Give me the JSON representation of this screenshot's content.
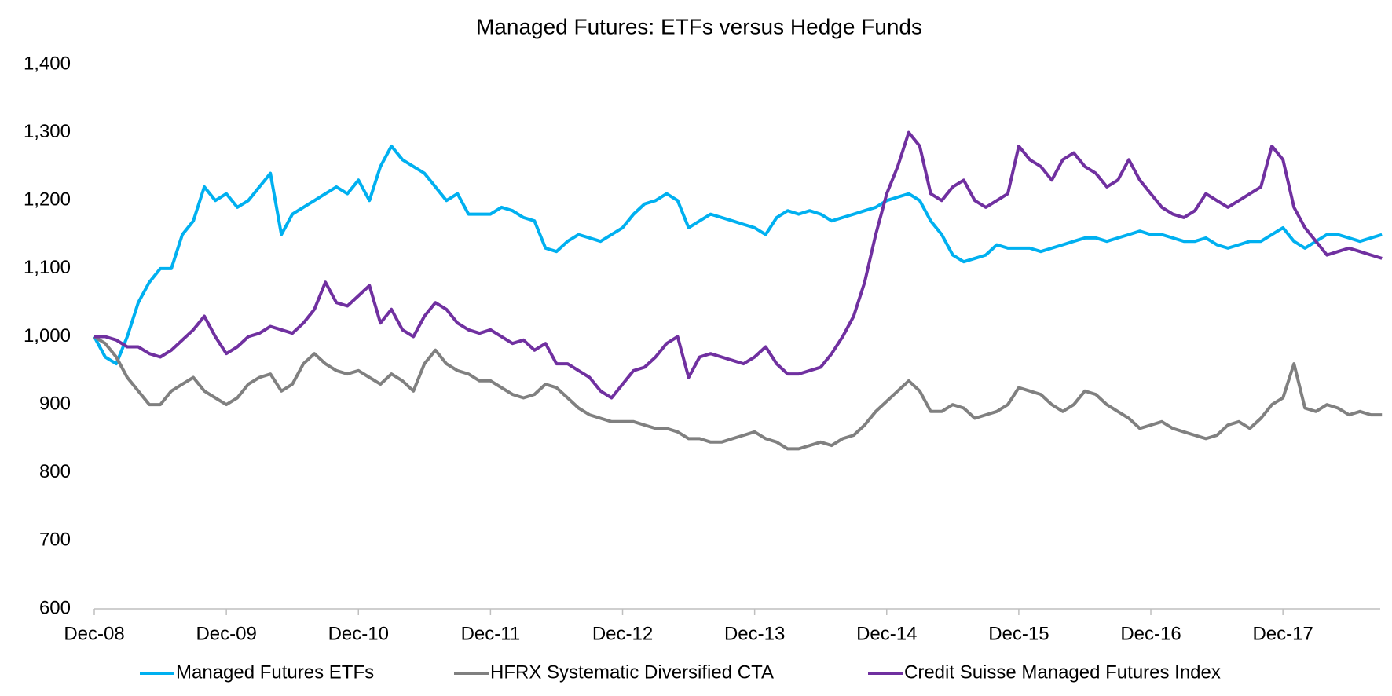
{
  "chart_data": {
    "type": "line",
    "title": "Managed Futures: ETFs versus Hedge Funds",
    "x": [
      "Dec-08",
      "Jan-09",
      "Feb-09",
      "Mar-09",
      "Apr-09",
      "May-09",
      "Jun-09",
      "Jul-09",
      "Aug-09",
      "Sep-09",
      "Oct-09",
      "Nov-09",
      "Dec-09",
      "Jan-10",
      "Feb-10",
      "Mar-10",
      "Apr-10",
      "May-10",
      "Jun-10",
      "Jul-10",
      "Aug-10",
      "Sep-10",
      "Oct-10",
      "Nov-10",
      "Dec-10",
      "Jan-11",
      "Feb-11",
      "Mar-11",
      "Apr-11",
      "May-11",
      "Jun-11",
      "Jul-11",
      "Aug-11",
      "Sep-11",
      "Oct-11",
      "Nov-11",
      "Dec-11",
      "Jan-12",
      "Feb-12",
      "Mar-12",
      "Apr-12",
      "May-12",
      "Jun-12",
      "Jul-12",
      "Aug-12",
      "Sep-12",
      "Oct-12",
      "Nov-12",
      "Dec-12",
      "Jan-13",
      "Feb-13",
      "Mar-13",
      "Apr-13",
      "May-13",
      "Jun-13",
      "Jul-13",
      "Aug-13",
      "Sep-13",
      "Oct-13",
      "Nov-13",
      "Dec-13",
      "Jan-14",
      "Feb-14",
      "Mar-14",
      "Apr-14",
      "May-14",
      "Jun-14",
      "Jul-14",
      "Aug-14",
      "Sep-14",
      "Oct-14",
      "Nov-14",
      "Dec-14",
      "Jan-15",
      "Feb-15",
      "Mar-15",
      "Apr-15",
      "May-15",
      "Jun-15",
      "Jul-15",
      "Aug-15",
      "Sep-15",
      "Oct-15",
      "Nov-15",
      "Dec-15",
      "Jan-16",
      "Feb-16",
      "Mar-16",
      "Apr-16",
      "May-16",
      "Jun-16",
      "Jul-16",
      "Aug-16",
      "Sep-16",
      "Oct-16",
      "Nov-16",
      "Dec-16",
      "Jan-17",
      "Feb-17",
      "Mar-17",
      "Apr-17",
      "May-17",
      "Jun-17",
      "Jul-17",
      "Aug-17",
      "Sep-17",
      "Oct-17",
      "Nov-17",
      "Dec-17",
      "Jan-18",
      "Feb-18",
      "Mar-18",
      "Apr-18",
      "May-18",
      "Jun-18",
      "Jul-18",
      "Aug-18",
      "Sep-18"
    ],
    "xticks": [
      0,
      12,
      24,
      36,
      48,
      60,
      72,
      84,
      96,
      108
    ],
    "series": [
      {
        "name": "Managed Futures ETFs",
        "color": "#00b0f0",
        "values": [
          1000,
          970,
          960,
          1000,
          1050,
          1080,
          1100,
          1100,
          1150,
          1170,
          1220,
          1200,
          1210,
          1190,
          1200,
          1220,
          1240,
          1150,
          1180,
          1190,
          1200,
          1210,
          1220,
          1210,
          1230,
          1200,
          1250,
          1280,
          1260,
          1250,
          1240,
          1220,
          1200,
          1210,
          1180,
          1180,
          1180,
          1190,
          1185,
          1175,
          1170,
          1130,
          1125,
          1140,
          1150,
          1145,
          1140,
          1150,
          1160,
          1180,
          1195,
          1200,
          1210,
          1200,
          1160,
          1170,
          1180,
          1175,
          1170,
          1165,
          1160,
          1150,
          1175,
          1185,
          1180,
          1185,
          1180,
          1170,
          1175,
          1180,
          1185,
          1190,
          1200,
          1205,
          1210,
          1200,
          1170,
          1150,
          1120,
          1110,
          1115,
          1120,
          1135,
          1130,
          1130,
          1130,
          1125,
          1130,
          1135,
          1140,
          1145,
          1145,
          1140,
          1145,
          1150,
          1155,
          1150,
          1150,
          1145,
          1140,
          1140,
          1145,
          1135,
          1130,
          1135,
          1140,
          1140,
          1150,
          1160,
          1140,
          1130,
          1140,
          1150,
          1150,
          1145,
          1140,
          1145,
          1150
        ]
      },
      {
        "name": "HFRX Systematic Diversified CTA",
        "color": "#808080",
        "values": [
          1000,
          990,
          970,
          940,
          920,
          900,
          900,
          920,
          930,
          940,
          920,
          910,
          900,
          910,
          930,
          940,
          945,
          920,
          930,
          960,
          975,
          960,
          950,
          945,
          950,
          940,
          930,
          945,
          935,
          920,
          960,
          980,
          960,
          950,
          945,
          935,
          935,
          925,
          915,
          910,
          915,
          930,
          925,
          910,
          895,
          885,
          880,
          875,
          875,
          875,
          870,
          865,
          865,
          860,
          850,
          850,
          845,
          845,
          850,
          855,
          860,
          850,
          845,
          835,
          835,
          840,
          845,
          840,
          850,
          855,
          870,
          890,
          905,
          920,
          935,
          920,
          890,
          890,
          900,
          895,
          880,
          885,
          890,
          900,
          925,
          920,
          915,
          900,
          890,
          900,
          920,
          915,
          900,
          890,
          880,
          865,
          870,
          875,
          865,
          860,
          855,
          850,
          855,
          870,
          875,
          865,
          880,
          900,
          910,
          960,
          895,
          890,
          900,
          895,
          885,
          890,
          885,
          885
        ]
      },
      {
        "name": "Credit Suisse Managed Futures Index",
        "color": "#7030a0",
        "values": [
          1000,
          1000,
          995,
          985,
          985,
          975,
          970,
          980,
          995,
          1010,
          1030,
          1000,
          975,
          985,
          1000,
          1005,
          1015,
          1010,
          1005,
          1020,
          1040,
          1080,
          1050,
          1045,
          1060,
          1075,
          1020,
          1040,
          1010,
          1000,
          1030,
          1050,
          1040,
          1020,
          1010,
          1005,
          1010,
          1000,
          990,
          995,
          980,
          990,
          960,
          960,
          950,
          940,
          920,
          910,
          930,
          950,
          955,
          970,
          990,
          1000,
          940,
          970,
          975,
          970,
          965,
          960,
          970,
          985,
          960,
          945,
          945,
          950,
          955,
          975,
          1000,
          1030,
          1080,
          1150,
          1210,
          1250,
          1300,
          1280,
          1210,
          1200,
          1220,
          1230,
          1200,
          1190,
          1200,
          1210,
          1280,
          1260,
          1250,
          1230,
          1260,
          1270,
          1250,
          1240,
          1220,
          1230,
          1260,
          1230,
          1210,
          1190,
          1180,
          1175,
          1185,
          1210,
          1200,
          1190,
          1200,
          1210,
          1220,
          1280,
          1260,
          1190,
          1160,
          1140,
          1120,
          1125,
          1130,
          1125,
          1120,
          1115
        ]
      }
    ],
    "ylim": [
      600,
      1400
    ],
    "yticks": [
      600,
      700,
      800,
      900,
      {
        "value": 1000,
        "label": "1,000"
      },
      {
        "value": 1100,
        "label": "1,100"
      },
      {
        "value": 1200,
        "label": "1,200"
      },
      {
        "value": 1300,
        "label": "1,300"
      },
      {
        "value": 1400,
        "label": "1,400"
      }
    ],
    "grid": false,
    "legend": "bottom"
  }
}
